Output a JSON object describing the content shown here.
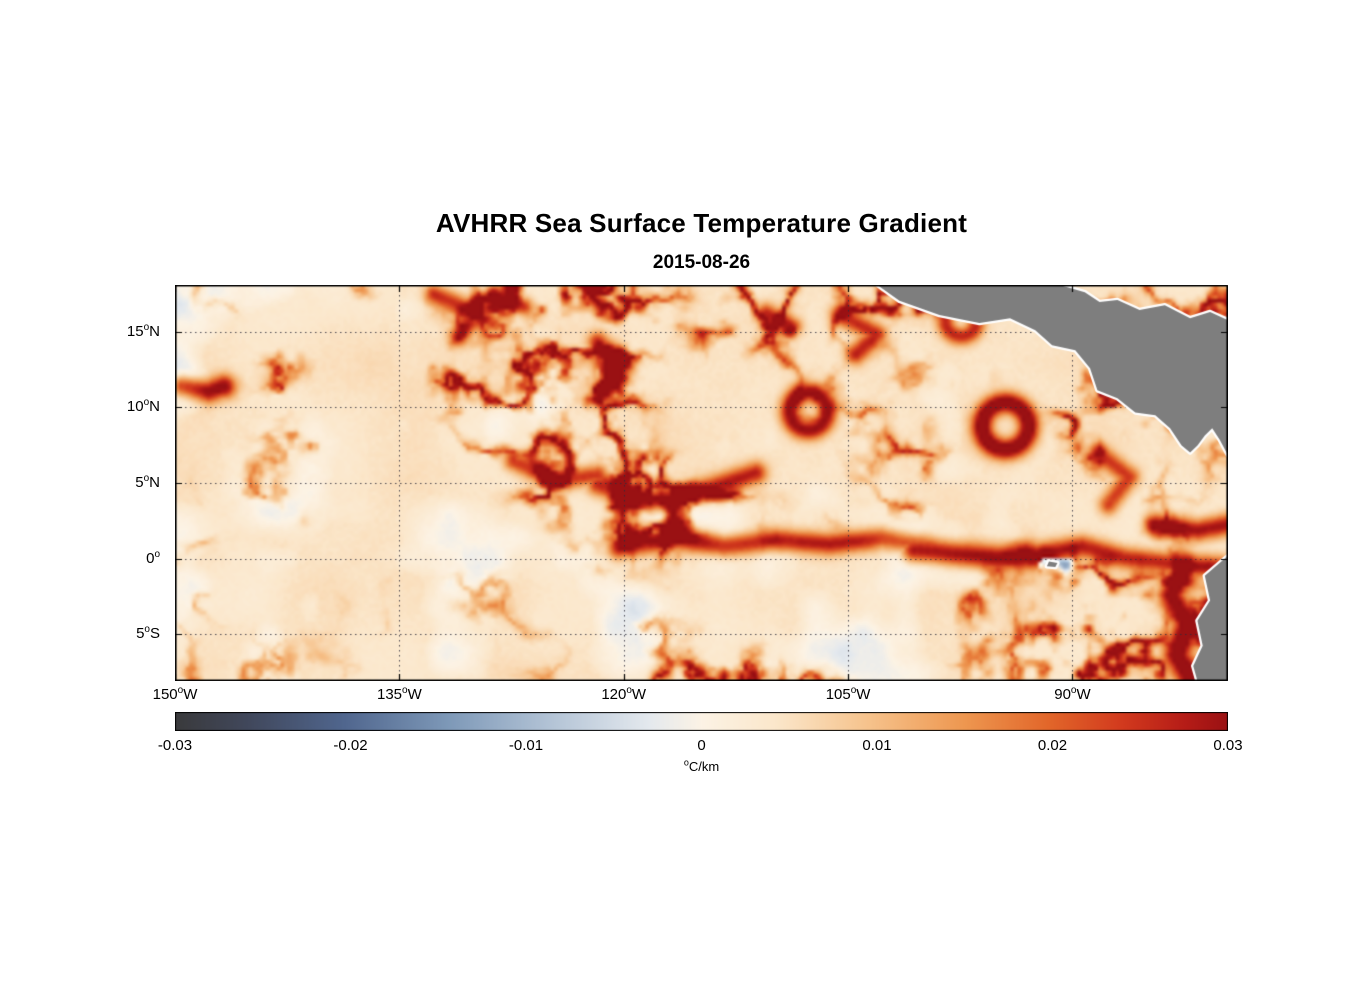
{
  "figure": {
    "title": "AVHRR Sea Surface Temperature Gradient",
    "date": "2015-08-26"
  },
  "chart_data": {
    "type": "heatmap",
    "title": "AVHRR Sea Surface Temperature Gradient",
    "subtitle": "2015-08-26",
    "variable": "sea surface temperature gradient",
    "units": "°C/km",
    "extent": {
      "lon_min": -150,
      "lon_max": -79.6,
      "lat_min": -8.1,
      "lat_max": 18.1
    },
    "deg_char": "o",
    "grid": "dotted",
    "x_ticks": [
      {
        "lon": -150,
        "num": "150",
        "dir": "W"
      },
      {
        "lon": -135,
        "num": "135",
        "dir": "W"
      },
      {
        "lon": -120,
        "num": "120",
        "dir": "W"
      },
      {
        "lon": -105,
        "num": "105",
        "dir": "W"
      },
      {
        "lon": -90,
        "num": "90",
        "dir": "W"
      }
    ],
    "y_ticks": [
      {
        "lat": 15,
        "num": "15",
        "dir": "N"
      },
      {
        "lat": 10,
        "num": "10",
        "dir": "N"
      },
      {
        "lat": 5,
        "num": "5",
        "dir": "N"
      },
      {
        "lat": 0,
        "num": "0",
        "dir": ""
      },
      {
        "lat": -5,
        "num": "5",
        "dir": "S"
      }
    ],
    "colorbar": {
      "min": -0.03,
      "max": 0.03,
      "tick_labels": [
        "-0.03",
        "-0.02",
        "-0.01",
        "0",
        "0.01",
        "0.02",
        "0.03"
      ],
      "units_sup": "o",
      "units_text": "C/km"
    },
    "colormap": [
      {
        "p": 0.0,
        "c": "#3a3a3c"
      },
      {
        "p": 0.07,
        "c": "#41485c"
      },
      {
        "p": 0.16,
        "c": "#50668e"
      },
      {
        "p": 0.26,
        "c": "#7e99b8"
      },
      {
        "p": 0.36,
        "c": "#b5c5d7"
      },
      {
        "p": 0.45,
        "c": "#e4e9ee"
      },
      {
        "p": 0.5,
        "c": "#fcf3e5"
      },
      {
        "p": 0.57,
        "c": "#fbe7cb"
      },
      {
        "p": 0.66,
        "c": "#f6c28b"
      },
      {
        "p": 0.75,
        "c": "#ee9750"
      },
      {
        "p": 0.83,
        "c": "#e2662a"
      },
      {
        "p": 0.9,
        "c": "#d23a1e"
      },
      {
        "p": 0.96,
        "c": "#b51c17"
      },
      {
        "p": 1.0,
        "c": "#9a1113"
      }
    ],
    "land_color": "#7e7e7e",
    "coast_color": "#ffffff",
    "sea_background": 0.0022,
    "noise_seed": 826,
    "land": [
      {
        "name": "central-america",
        "pts": [
          [
            0.667,
            0.0
          ],
          [
            0.688,
            0.04
          ],
          [
            0.726,
            0.076
          ],
          [
            0.764,
            0.096
          ],
          [
            0.793,
            0.084
          ],
          [
            0.817,
            0.114
          ],
          [
            0.833,
            0.152
          ],
          [
            0.855,
            0.165
          ],
          [
            0.869,
            0.21
          ],
          [
            0.876,
            0.266
          ],
          [
            0.895,
            0.286
          ],
          [
            0.912,
            0.322
          ],
          [
            0.931,
            0.329
          ],
          [
            0.945,
            0.362
          ],
          [
            0.956,
            0.405
          ],
          [
            0.964,
            0.423
          ],
          [
            0.971,
            0.405
          ],
          [
            0.978,
            0.38
          ],
          [
            0.985,
            0.362
          ],
          [
            0.992,
            0.39
          ],
          [
            1.0,
            0.43
          ],
          [
            1.0,
            0.089
          ],
          [
            0.983,
            0.068
          ],
          [
            0.964,
            0.084
          ],
          [
            0.94,
            0.051
          ],
          [
            0.916,
            0.063
          ],
          [
            0.895,
            0.038
          ],
          [
            0.878,
            0.043
          ],
          [
            0.864,
            0.018
          ],
          [
            0.84,
            0.0
          ]
        ]
      },
      {
        "name": "south-america",
        "pts": [
          [
            1.0,
            0.684
          ],
          [
            0.978,
            0.734
          ],
          [
            0.983,
            0.797
          ],
          [
            0.971,
            0.848
          ],
          [
            0.976,
            0.911
          ],
          [
            0.967,
            0.962
          ],
          [
            0.971,
            1.0
          ],
          [
            1.0,
            1.0
          ]
        ]
      },
      {
        "name": "galapagos",
        "pts": [
          [
            0.83,
            0.698
          ],
          [
            0.838,
            0.702
          ],
          [
            0.836,
            0.712
          ],
          [
            0.828,
            0.71
          ]
        ]
      }
    ],
    "features": [
      {
        "type": "line",
        "pts": [
          [
            0.42,
            0.66
          ],
          [
            0.47,
            0.635
          ],
          [
            0.52,
            0.655
          ],
          [
            0.57,
            0.64
          ],
          [
            0.62,
            0.65
          ],
          [
            0.67,
            0.635
          ],
          [
            0.72,
            0.66
          ],
          [
            0.77,
            0.685
          ],
          [
            0.82,
            0.675
          ],
          [
            0.86,
            0.655
          ],
          [
            0.9,
            0.685
          ],
          [
            0.95,
            0.7
          ],
          [
            1.0,
            0.71
          ]
        ],
        "amp": 0.024,
        "sigma": 2.2
      },
      {
        "type": "line",
        "pts": [
          [
            0.7,
            0.665
          ],
          [
            0.74,
            0.675
          ],
          [
            0.78,
            0.685
          ],
          [
            0.81,
            0.68
          ]
        ],
        "amp": 0.031,
        "sigma": 2.6
      },
      {
        "type": "line",
        "pts": [
          [
            0.825,
            0.695
          ],
          [
            0.845,
            0.705
          ]
        ],
        "amp": -0.02,
        "sigma": 1.6
      },
      {
        "type": "ring",
        "c": [
          0.787,
          0.352
        ],
        "r": 0.022,
        "amp": 0.031,
        "sigma": 2.2
      },
      {
        "type": "ring",
        "c": [
          0.6,
          0.315
        ],
        "r": 0.018,
        "amp": 0.026,
        "sigma": 2.0
      },
      {
        "type": "ring",
        "c": [
          0.745,
          0.085
        ],
        "r": 0.015,
        "amp": 0.022,
        "sigma": 1.8
      },
      {
        "type": "line",
        "pts": [
          [
            0.955,
            0.72
          ],
          [
            0.945,
            0.78
          ],
          [
            0.96,
            0.85
          ],
          [
            0.95,
            0.93
          ],
          [
            0.965,
            1.0
          ]
        ],
        "amp": 0.03,
        "sigma": 2.6
      },
      {
        "type": "line",
        "pts": [
          [
            0.93,
            0.6
          ],
          [
            0.97,
            0.615
          ],
          [
            1.0,
            0.6
          ]
        ],
        "amp": 0.026,
        "sigma": 2.2
      },
      {
        "type": "line",
        "pts": [
          [
            0.4,
            0.5
          ],
          [
            0.45,
            0.545
          ],
          [
            0.5,
            0.515
          ],
          [
            0.55,
            0.47
          ]
        ],
        "amp": 0.023,
        "sigma": 2.2
      },
      {
        "type": "line",
        "pts": [
          [
            0.32,
            0.44
          ],
          [
            0.36,
            0.49
          ],
          [
            0.4,
            0.475
          ]
        ],
        "amp": 0.021,
        "sigma": 2.0
      },
      {
        "type": "line",
        "pts": [
          [
            0.245,
            0.02
          ],
          [
            0.285,
            0.065
          ],
          [
            0.268,
            0.125
          ]
        ],
        "amp": 0.022,
        "sigma": 2.0
      },
      {
        "type": "line",
        "pts": [
          [
            0.005,
            0.25
          ],
          [
            0.03,
            0.265
          ],
          [
            0.045,
            0.25
          ]
        ],
        "amp": 0.027,
        "sigma": 2.2
      },
      {
        "type": "line",
        "pts": [
          [
            0.4,
            0.14
          ],
          [
            0.425,
            0.2
          ],
          [
            0.405,
            0.26
          ]
        ],
        "amp": 0.022,
        "sigma": 2.0
      },
      {
        "type": "line",
        "pts": [
          [
            0.63,
            0.07
          ],
          [
            0.665,
            0.12
          ],
          [
            0.645,
            0.17
          ]
        ],
        "amp": 0.022,
        "sigma": 2.0
      },
      {
        "type": "line",
        "pts": [
          [
            0.875,
            0.42
          ],
          [
            0.905,
            0.48
          ],
          [
            0.885,
            0.55
          ]
        ],
        "amp": 0.02,
        "sigma": 2.0
      },
      {
        "type": "line",
        "pts": [
          [
            0.3,
            0.02
          ],
          [
            0.33,
            0.05
          ]
        ],
        "amp": 0.02,
        "sigma": 1.8
      },
      {
        "type": "line",
        "pts": [
          [
            0.56,
            0.065
          ],
          [
            0.585,
            0.1
          ]
        ],
        "amp": 0.021,
        "sigma": 1.8
      }
    ]
  }
}
